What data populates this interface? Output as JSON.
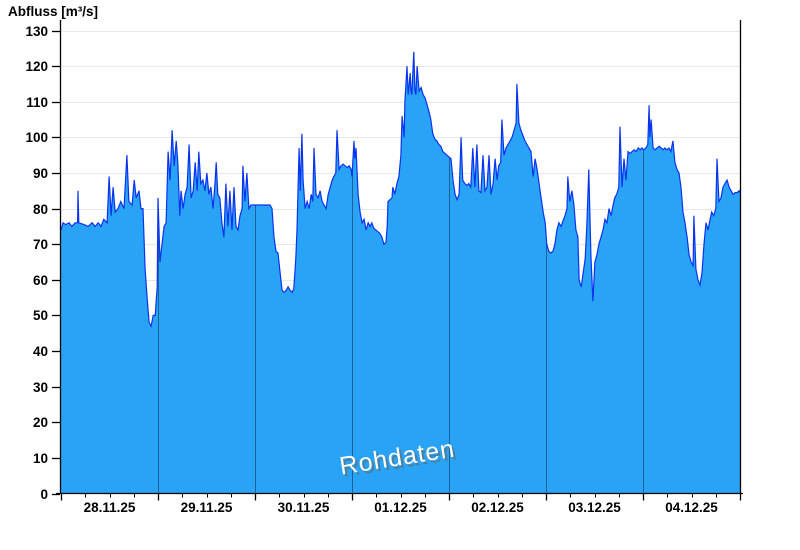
{
  "watermark": {
    "text": "Rohdaten",
    "color": "#FFFFFF",
    "shadow_color": "#666666"
  },
  "colors": {
    "fill": "#29A3F6",
    "line": "#0A33F0",
    "day_line": "#1E6195",
    "grid": "#E8E8E8",
    "axis": "#000000"
  },
  "chart_data": {
    "type": "area",
    "title": "Abfluss [m³/s]",
    "ylabel": "Abfluss [m³/s]",
    "xlabel": "",
    "series_name": "Rohdaten",
    "legend": "none",
    "grid": "on",
    "ylim": [
      0,
      130
    ],
    "ytick_step": 10,
    "x_day_labels": [
      "28.11.25",
      "29.11.25",
      "30.11.25",
      "01.12.25",
      "02.12.25",
      "03.12.25",
      "04.12.25"
    ],
    "hours_per_day": 24,
    "x_total_hours": 168,
    "minor_tick_hours": 6,
    "points": [
      [
        0,
        74
      ],
      [
        0.5,
        76
      ],
      [
        1.2,
        75.5
      ],
      [
        2,
        76
      ],
      [
        2.7,
        75
      ],
      [
        3.5,
        76
      ],
      [
        4.1,
        76
      ],
      [
        4.2,
        85
      ],
      [
        4.4,
        76
      ],
      [
        5.7,
        75.5
      ],
      [
        6.7,
        75
      ],
      [
        7.7,
        76
      ],
      [
        8.4,
        75
      ],
      [
        9.2,
        76
      ],
      [
        9.9,
        75
      ],
      [
        10.6,
        77
      ],
      [
        11.4,
        76
      ],
      [
        11.9,
        89
      ],
      [
        12.4,
        78
      ],
      [
        12.9,
        86
      ],
      [
        13.4,
        79
      ],
      [
        14.1,
        80
      ],
      [
        14.8,
        82
      ],
      [
        15.6,
        80
      ],
      [
        16.3,
        95
      ],
      [
        16.8,
        82
      ],
      [
        17.6,
        81
      ],
      [
        18.1,
        88
      ],
      [
        18.6,
        83
      ],
      [
        19.3,
        85
      ],
      [
        19.8,
        80
      ],
      [
        20.3,
        80
      ],
      [
        20.8,
        63
      ],
      [
        21.3,
        55
      ],
      [
        21.8,
        48
      ],
      [
        22.3,
        47
      ],
      [
        22.8,
        50
      ],
      [
        23.3,
        50
      ],
      [
        23.8,
        58
      ],
      [
        24,
        83
      ],
      [
        24.5,
        65
      ],
      [
        25,
        70
      ],
      [
        25.5,
        75
      ],
      [
        26,
        76
      ],
      [
        26.5,
        96
      ],
      [
        27,
        88
      ],
      [
        27.5,
        102
      ],
      [
        28,
        92
      ],
      [
        28.5,
        99
      ],
      [
        28.9,
        93
      ],
      [
        29.4,
        78
      ],
      [
        29.7,
        85
      ],
      [
        30.2,
        80
      ],
      [
        30.7,
        84
      ],
      [
        31.2,
        86
      ],
      [
        31.7,
        98
      ],
      [
        32.2,
        83
      ],
      [
        32.7,
        85
      ],
      [
        33.2,
        93
      ],
      [
        33.7,
        85
      ],
      [
        34.1,
        96
      ],
      [
        34.6,
        87
      ],
      [
        35.1,
        88
      ],
      [
        35.6,
        85
      ],
      [
        36.1,
        90
      ],
      [
        36.6,
        84
      ],
      [
        37.1,
        86
      ],
      [
        37.6,
        80
      ],
      [
        38.1,
        87
      ],
      [
        38.4,
        93
      ],
      [
        38.8,
        84
      ],
      [
        39.3,
        83
      ],
      [
        39.8,
        76
      ],
      [
        40.3,
        72
      ],
      [
        40.8,
        87
      ],
      [
        41.3,
        75
      ],
      [
        41.8,
        85
      ],
      [
        42.3,
        74
      ],
      [
        42.8,
        86
      ],
      [
        43.3,
        75
      ],
      [
        43.8,
        74
      ],
      [
        44.3,
        78
      ],
      [
        44.8,
        80
      ],
      [
        45,
        92
      ],
      [
        45.5,
        82
      ],
      [
        46,
        90
      ],
      [
        46.5,
        80
      ],
      [
        47,
        81
      ],
      [
        48,
        81
      ],
      [
        49.5,
        81
      ],
      [
        51,
        81
      ],
      [
        51.7,
        81
      ],
      [
        52.2,
        80
      ],
      [
        52.7,
        72
      ],
      [
        53.2,
        68
      ],
      [
        53.7,
        67.5
      ],
      [
        54.2,
        62
      ],
      [
        54.7,
        57
      ],
      [
        55.2,
        56.5
      ],
      [
        55.7,
        57
      ],
      [
        56.2,
        58
      ],
      [
        56.7,
        57
      ],
      [
        57.2,
        56.5
      ],
      [
        57.6,
        57.5
      ],
      [
        58.1,
        66
      ],
      [
        58.4,
        74
      ],
      [
        58.9,
        97
      ],
      [
        59.2,
        85
      ],
      [
        59.6,
        101
      ],
      [
        59.9,
        88
      ],
      [
        60.4,
        80
      ],
      [
        60.9,
        82
      ],
      [
        61.4,
        80
      ],
      [
        61.9,
        84
      ],
      [
        62.3,
        82
      ],
      [
        62.6,
        97
      ],
      [
        63.1,
        84
      ],
      [
        63.6,
        83
      ],
      [
        64.1,
        85
      ],
      [
        64.6,
        82
      ],
      [
        65.1,
        81
      ],
      [
        65.6,
        80
      ],
      [
        66.1,
        84
      ],
      [
        66.6,
        86
      ],
      [
        67.1,
        88
      ],
      [
        67.5,
        89
      ],
      [
        68,
        90
      ],
      [
        68.3,
        102
      ],
      [
        68.8,
        91
      ],
      [
        69.3,
        92
      ],
      [
        69.8,
        92.5
      ],
      [
        70.3,
        92
      ],
      [
        70.8,
        91.5
      ],
      [
        71.3,
        92
      ],
      [
        71.8,
        91
      ],
      [
        72,
        89
      ],
      [
        72.5,
        99
      ],
      [
        72.7,
        94
      ],
      [
        73,
        97
      ],
      [
        73.5,
        84
      ],
      [
        74,
        79
      ],
      [
        74.5,
        76
      ],
      [
        75,
        77
      ],
      [
        75.5,
        74
      ],
      [
        76,
        76
      ],
      [
        76.5,
        75
      ],
      [
        76.9,
        76
      ],
      [
        77.4,
        74.5
      ],
      [
        77.9,
        74
      ],
      [
        78.4,
        73.5
      ],
      [
        78.9,
        73
      ],
      [
        79.4,
        72
      ],
      [
        79.9,
        70
      ],
      [
        80.4,
        70.5
      ],
      [
        80.7,
        75
      ],
      [
        80.9,
        82
      ],
      [
        81.4,
        82.5
      ],
      [
        81.9,
        83
      ],
      [
        82.1,
        86
      ],
      [
        82.6,
        84
      ],
      [
        83.1,
        87
      ],
      [
        83.6,
        89
      ],
      [
        84.1,
        95
      ],
      [
        84.4,
        106
      ],
      [
        84.9,
        100
      ],
      [
        85.1,
        110
      ],
      [
        85.6,
        120
      ],
      [
        85.9,
        112
      ],
      [
        86.4,
        118
      ],
      [
        86.6,
        113
      ],
      [
        86.8,
        112
      ],
      [
        87.3,
        124
      ],
      [
        87.6,
        113
      ],
      [
        87.8,
        112
      ],
      [
        88.1,
        120
      ],
      [
        88.6,
        113
      ],
      [
        89.1,
        114
      ],
      [
        89.6,
        112
      ],
      [
        90.1,
        111
      ],
      [
        90.6,
        109
      ],
      [
        91.1,
        107
      ],
      [
        91.5,
        105
      ],
      [
        92,
        101
      ],
      [
        92.5,
        99.5
      ],
      [
        93,
        99
      ],
      [
        93.5,
        98
      ],
      [
        94,
        97.5
      ],
      [
        94.5,
        96
      ],
      [
        95,
        95.5
      ],
      [
        95.5,
        95
      ],
      [
        96,
        94.5
      ],
      [
        96.5,
        94
      ],
      [
        97,
        88
      ],
      [
        97.5,
        84
      ],
      [
        98,
        82.5
      ],
      [
        98.5,
        84
      ],
      [
        99,
        100
      ],
      [
        99.4,
        88
      ],
      [
        99.9,
        87
      ],
      [
        100.4,
        86.5
      ],
      [
        100.9,
        87
      ],
      [
        101.4,
        86
      ],
      [
        101.9,
        97
      ],
      [
        102.4,
        86
      ],
      [
        102.9,
        98
      ],
      [
        103.4,
        85
      ],
      [
        103.9,
        84.5
      ],
      [
        104.4,
        95
      ],
      [
        104.9,
        85
      ],
      [
        105.4,
        86
      ],
      [
        105.9,
        95
      ],
      [
        106.4,
        84
      ],
      [
        106.9,
        87
      ],
      [
        107.4,
        94
      ],
      [
        107.9,
        88
      ],
      [
        108.3,
        92
      ],
      [
        108.8,
        93
      ],
      [
        109.1,
        105
      ],
      [
        109.6,
        95
      ],
      [
        110.1,
        97
      ],
      [
        110.6,
        98
      ],
      [
        111.1,
        99
      ],
      [
        111.6,
        100
      ],
      [
        112.1,
        102
      ],
      [
        112.6,
        104
      ],
      [
        112.8,
        115
      ],
      [
        113.3,
        104
      ],
      [
        113.8,
        102
      ],
      [
        114.3,
        100.5
      ],
      [
        114.8,
        99
      ],
      [
        115.3,
        98
      ],
      [
        115.8,
        97
      ],
      [
        116.3,
        96
      ],
      [
        116.8,
        89
      ],
      [
        117.3,
        94
      ],
      [
        117.8,
        91
      ],
      [
        118.3,
        87
      ],
      [
        118.8,
        83
      ],
      [
        119.3,
        79
      ],
      [
        119.8,
        76
      ],
      [
        120.2,
        70
      ],
      [
        120.7,
        68
      ],
      [
        121.2,
        67.5
      ],
      [
        121.7,
        68
      ],
      [
        122.2,
        70
      ],
      [
        122.7,
        74
      ],
      [
        123.2,
        76
      ],
      [
        123.7,
        75
      ],
      [
        124.2,
        76.5
      ],
      [
        124.7,
        78
      ],
      [
        125.2,
        80
      ],
      [
        125.4,
        89
      ],
      [
        125.9,
        82
      ],
      [
        126.4,
        85
      ],
      [
        126.9,
        81
      ],
      [
        127.4,
        74
      ],
      [
        127.9,
        72
      ],
      [
        128.2,
        60
      ],
      [
        128.7,
        58
      ],
      [
        129.2,
        62
      ],
      [
        129.7,
        66
      ],
      [
        130.1,
        75
      ],
      [
        130.6,
        91
      ],
      [
        131.1,
        67
      ],
      [
        131.6,
        54
      ],
      [
        132.1,
        65
      ],
      [
        132.6,
        67
      ],
      [
        133.1,
        70
      ],
      [
        133.6,
        72
      ],
      [
        134.1,
        74
      ],
      [
        134.6,
        77
      ],
      [
        135.1,
        76
      ],
      [
        135.6,
        80
      ],
      [
        136.1,
        78
      ],
      [
        136.6,
        81
      ],
      [
        137,
        83
      ],
      [
        137.5,
        84
      ],
      [
        138,
        86
      ],
      [
        138.3,
        103
      ],
      [
        138.8,
        86
      ],
      [
        139.3,
        94
      ],
      [
        139.8,
        88
      ],
      [
        140.3,
        96
      ],
      [
        140.8,
        95.5
      ],
      [
        141.3,
        96
      ],
      [
        141.8,
        96.5
      ],
      [
        142.3,
        96
      ],
      [
        142.8,
        97
      ],
      [
        143.3,
        96.5
      ],
      [
        143.7,
        97
      ],
      [
        144.2,
        96.5
      ],
      [
        144.7,
        97
      ],
      [
        145.2,
        98
      ],
      [
        145.5,
        109
      ],
      [
        145.7,
        100
      ],
      [
        146,
        105
      ],
      [
        146.5,
        97
      ],
      [
        147,
        96.5
      ],
      [
        147.5,
        97
      ],
      [
        148,
        97.5
      ],
      [
        148.5,
        97
      ],
      [
        149,
        96.5
      ],
      [
        149.4,
        97
      ],
      [
        149.9,
        96.5
      ],
      [
        150.4,
        97
      ],
      [
        150.9,
        96
      ],
      [
        151.4,
        99
      ],
      [
        151.9,
        93
      ],
      [
        152.4,
        91
      ],
      [
        152.9,
        90
      ],
      [
        153.4,
        86
      ],
      [
        153.9,
        79
      ],
      [
        154.4,
        76
      ],
      [
        154.9,
        72
      ],
      [
        155.4,
        67
      ],
      [
        155.9,
        65
      ],
      [
        156.4,
        64
      ],
      [
        156.6,
        78
      ],
      [
        157.1,
        63
      ],
      [
        157.6,
        60
      ],
      [
        158.1,
        58.5
      ],
      [
        158.6,
        62
      ],
      [
        159.1,
        70
      ],
      [
        159.6,
        76
      ],
      [
        160.1,
        74
      ],
      [
        160.6,
        77
      ],
      [
        161,
        79
      ],
      [
        161.5,
        78
      ],
      [
        162,
        80
      ],
      [
        162.3,
        94
      ],
      [
        162.8,
        82
      ],
      [
        163.3,
        83
      ],
      [
        163.8,
        86
      ],
      [
        164.3,
        87
      ],
      [
        164.8,
        88
      ],
      [
        165.3,
        86
      ],
      [
        165.8,
        85
      ],
      [
        166.3,
        84
      ],
      [
        166.8,
        84.5
      ],
      [
        167.3,
        84.5
      ],
      [
        167.8,
        85
      ],
      [
        168,
        84.5
      ]
    ]
  }
}
